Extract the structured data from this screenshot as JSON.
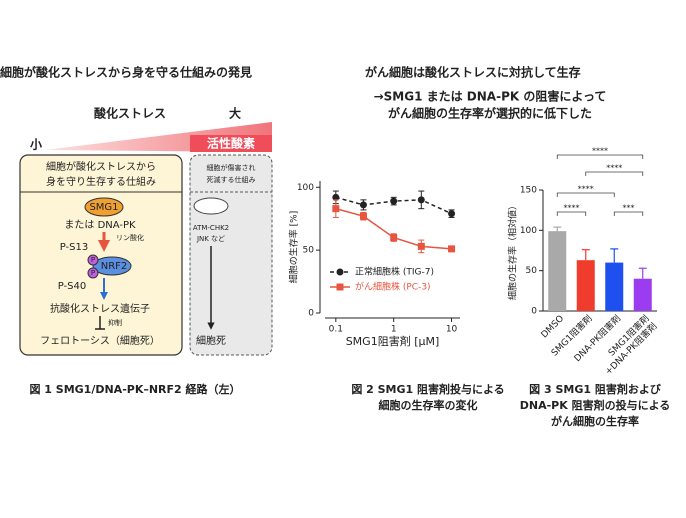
{
  "header": {
    "left": "細胞が酸化ストレスから身を守る仕組みの発見",
    "right": "がん細胞は酸化ストレスに対抗して生存",
    "subtitle": [
      "→SMG1 または DNA-PK の阻害によって",
      "がん細胞の生存率が選択的に低下した"
    ]
  },
  "diagram": {
    "stress_label": "酸化ストレス",
    "large": "大",
    "small": "小",
    "ros": "活性酸素",
    "left_box": {
      "header": [
        "細胞が酸化ストレスから",
        "身を守り生存する仕組み"
      ],
      "smg1": "SMG1",
      "or_dnapk": "または DNA-PK",
      "phospho": "リン酸化",
      "ps13": "P-S13",
      "p": "P",
      "nrf2": "NRF2",
      "ps40": "P-S40",
      "genes": "抗酸化ストレス遺伝子",
      "inhibit": "抑制",
      "ferroptosis": "フェロトーシス（細胞死）"
    },
    "right_box": {
      "header": [
        "細胞が傷害され",
        "死滅する仕組み"
      ],
      "pathway": [
        "ATM-CHK2",
        "JNK など"
      ],
      "death": "細胞死"
    }
  },
  "captions": {
    "fig1": [
      "図 1 SMG1/DNA-PK–NRF2 経路（左）"
    ],
    "fig2": [
      "図 2 SMG1 阻害剤投与による",
      "細胞の生存率の変化"
    ],
    "fig3": [
      "図 3 SMG1 阻害剤および",
      "DNA-PK 阻害剤の投与による",
      "がん細胞の生存率"
    ]
  },
  "chart_data": [
    {
      "type": "line",
      "x_label": "SMG1阻害剤 [μM]",
      "y_label": "細胞の生存率 [%]",
      "xscale": "log",
      "x": [
        0.1,
        0.3,
        1,
        3,
        10
      ],
      "series": [
        {
          "name": "正常細胞株 (TIG-7)",
          "color": "#222222",
          "values": [
            92,
            86,
            89,
            90,
            79
          ],
          "errors": [
            5,
            4,
            3,
            7,
            3
          ]
        },
        {
          "name": "がん細胞株 (PC-3)",
          "color": "#e8553f",
          "values": [
            83,
            77,
            60,
            53,
            51
          ],
          "errors": [
            7,
            3,
            3,
            5,
            2
          ]
        }
      ],
      "xlim": [
        0.065,
        14
      ],
      "xticks": [
        0.1,
        1,
        10
      ],
      "ylim": [
        0,
        105
      ],
      "yticks": [
        0,
        50,
        100
      ]
    },
    {
      "type": "bar",
      "y_label": "細胞の生存率（相対値）",
      "categories": [
        "DMSO",
        "SMG1阻害剤",
        "DNA-PK阻害剤",
        [
          "SMG1阻害剤",
          "+DNA-PK阻害剤"
        ]
      ],
      "values": [
        99,
        63,
        60,
        40
      ],
      "errors": [
        5,
        13,
        17,
        13
      ],
      "colors": [
        "#a9a9a9",
        "#f03c2c",
        "#1e50f0",
        "#9b3cf0"
      ],
      "ylim": [
        0,
        150
      ],
      "yticks": [
        0,
        50,
        100,
        150
      ],
      "annotations": [
        "****",
        "****",
        "****",
        "****",
        "***"
      ]
    }
  ]
}
